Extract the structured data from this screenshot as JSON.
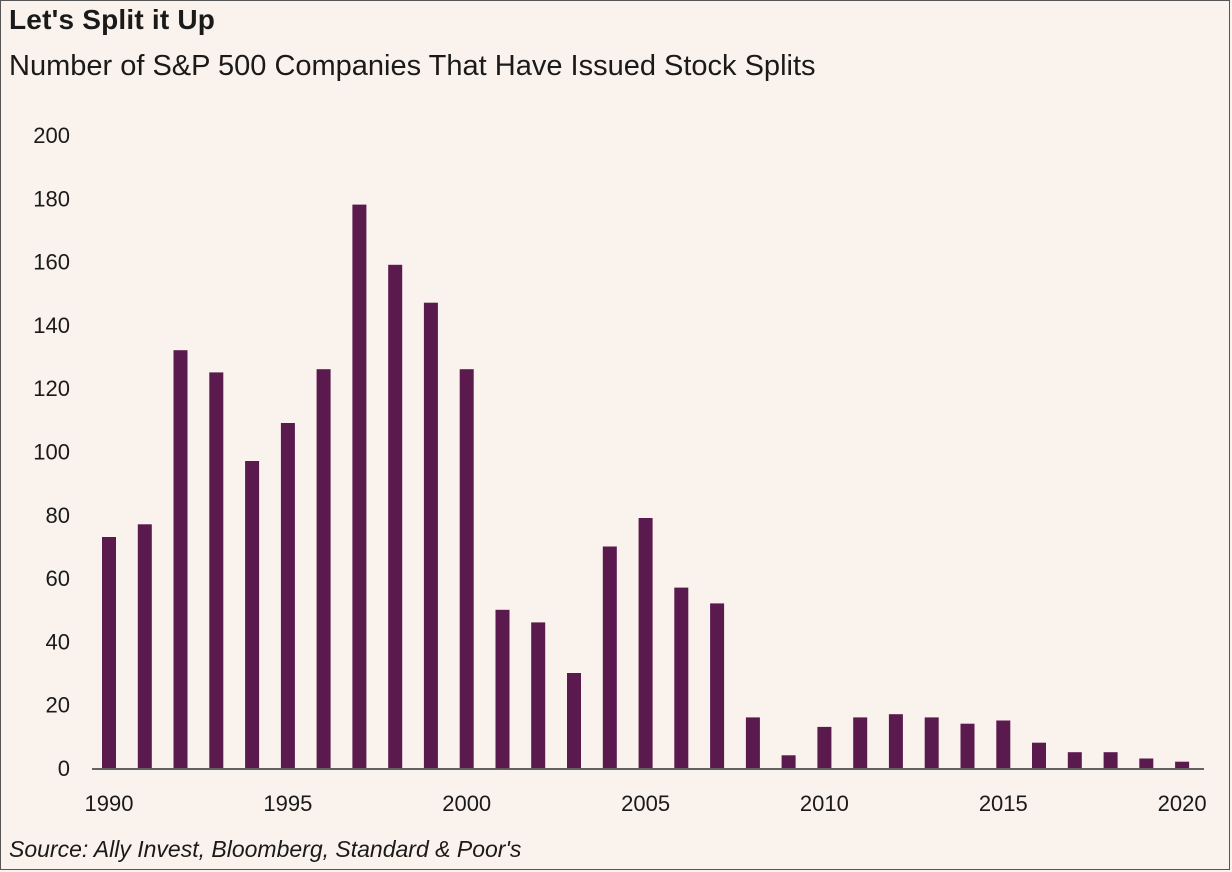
{
  "title": "Let's Split it Up",
  "subtitle": "Number of S&P 500 Companies That Have Issued Stock Splits",
  "source": "Source: Ally Invest, Bloomberg, Standard & Poor's",
  "colors": {
    "bar": "#5b1a4e",
    "background": "#faf2ec",
    "axis": "#333333"
  },
  "chart_data": {
    "type": "bar",
    "title": "Let's Split it Up",
    "subtitle": "Number of S&P 500 Companies That Have Issued Stock Splits",
    "xlabel": "",
    "ylabel": "",
    "ylim": [
      0,
      200
    ],
    "yticks": [
      0,
      20,
      40,
      60,
      80,
      100,
      120,
      140,
      160,
      180,
      200
    ],
    "xtick_labels": [
      "1990",
      "1995",
      "2000",
      "2005",
      "2010",
      "2015",
      "2020"
    ],
    "grid": false,
    "legend": "none",
    "categories": [
      1990,
      1991,
      1992,
      1993,
      1994,
      1995,
      1996,
      1997,
      1998,
      1999,
      2000,
      2001,
      2002,
      2003,
      2004,
      2005,
      2006,
      2007,
      2008,
      2009,
      2010,
      2011,
      2012,
      2013,
      2014,
      2015,
      2016,
      2017,
      2018,
      2019,
      2020
    ],
    "values": [
      73,
      77,
      132,
      125,
      97,
      109,
      126,
      178,
      159,
      147,
      126,
      50,
      46,
      30,
      70,
      79,
      57,
      52,
      16,
      4,
      13,
      16,
      17,
      16,
      14,
      15,
      8,
      5,
      5,
      3,
      2
    ]
  }
}
